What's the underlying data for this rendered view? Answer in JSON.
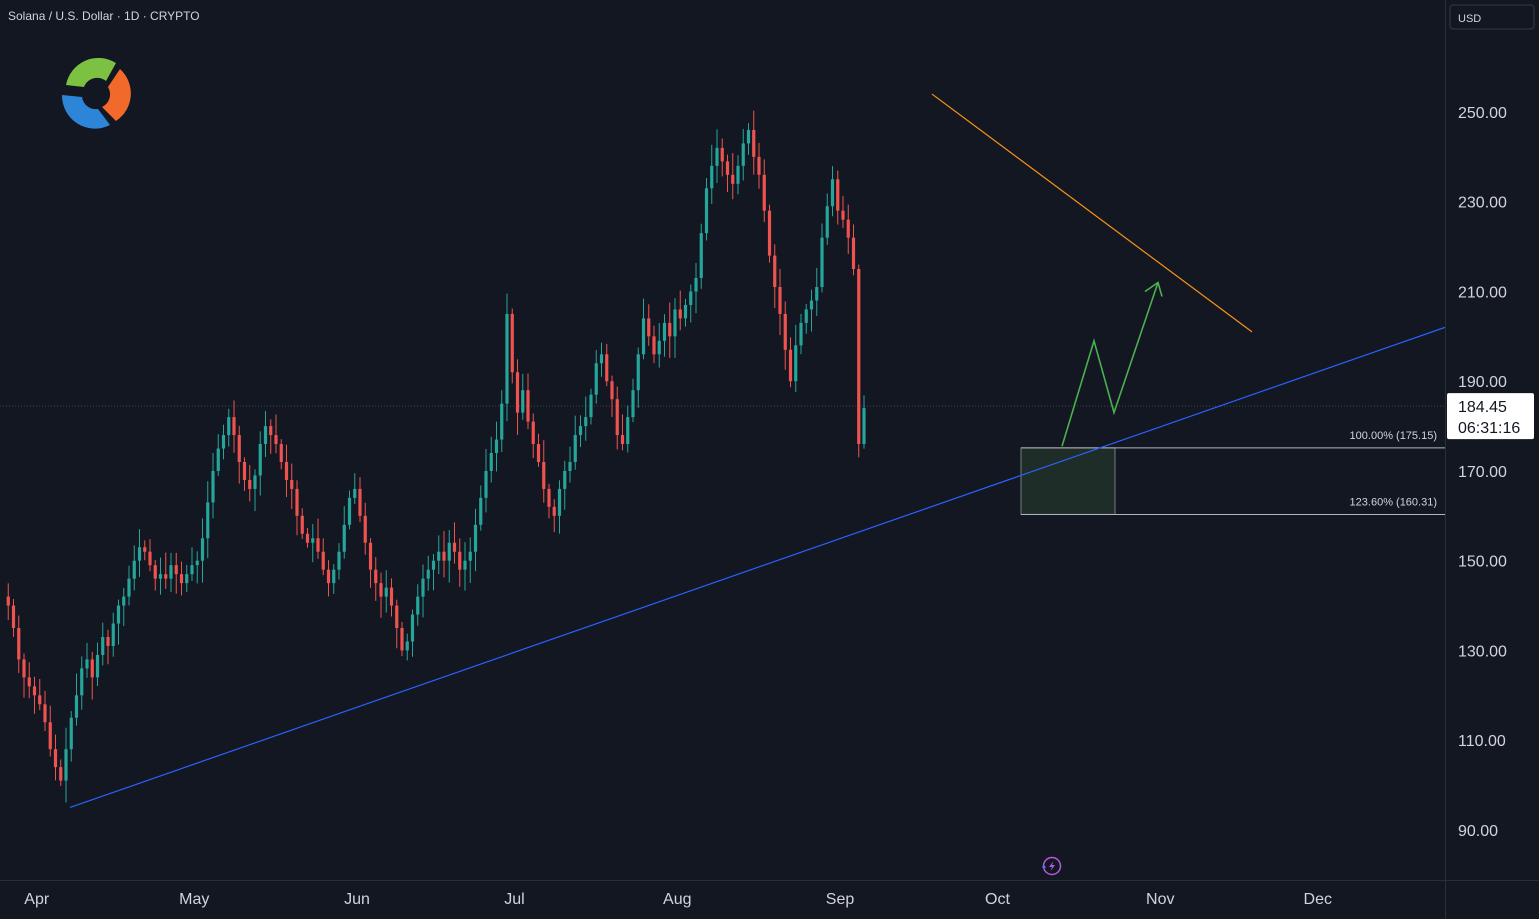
{
  "header": {
    "title": "Solana / U.S. Dollar · 1D · CRYPTO"
  },
  "currency_button": "USD",
  "current_price": {
    "price": "184.45",
    "countdown": "06:31:16"
  },
  "logo_icon": "tri-swirl-logo-icon",
  "bottom_icon": "lightning-icon",
  "colors": {
    "background": "#131722",
    "up": "#26a69a",
    "down": "#ef5350",
    "trendline_support": "#2962ff",
    "trendline_resistance": "#f7931a",
    "projection": "#4caf50",
    "fib_box": "#1f2d29"
  },
  "fibonacci": {
    "level1_label": "100.00% (175.15)",
    "level2_label": "123.60% (160.31)"
  },
  "chart_data": {
    "type": "candlestick",
    "title": "Solana / U.S. Dollar · 1D · CRYPTO",
    "y_ticks": [
      "250.00",
      "230.00",
      "210.00",
      "190.00",
      "170.00",
      "150.00",
      "130.00",
      "110.00",
      "90.00"
    ],
    "x_ticks": [
      "Apr",
      "May",
      "Jun",
      "Jul",
      "Aug",
      "Sep",
      "Oct",
      "Nov",
      "Dec"
    ],
    "ylim": [
      80,
      268
    ],
    "grid": false,
    "closes": [
      140,
      135,
      128,
      124,
      122,
      120,
      118,
      114,
      108,
      104,
      101,
      108,
      115,
      120,
      126,
      128,
      124,
      129,
      133,
      131,
      136,
      140,
      142,
      146,
      150,
      153,
      152,
      149,
      146,
      147,
      146,
      149,
      147,
      145,
      147,
      149,
      150,
      155,
      163,
      170,
      175,
      178,
      182,
      178,
      172,
      168,
      166,
      169,
      176,
      180,
      178,
      176,
      172,
      168,
      166,
      160,
      156,
      154,
      155,
      152,
      148,
      145,
      148,
      152,
      158,
      164,
      166,
      160,
      154,
      148,
      145,
      142,
      144,
      140,
      135,
      130,
      132,
      138,
      142,
      146,
      148,
      150,
      152,
      150,
      154,
      152,
      148,
      150,
      152,
      158,
      164,
      170,
      174,
      177,
      185,
      205,
      192,
      183,
      188,
      181,
      176,
      172,
      166,
      162,
      160,
      166,
      170,
      172,
      178,
      180,
      182,
      187,
      194,
      196,
      190,
      186,
      178,
      176,
      182,
      188,
      196,
      204,
      200,
      196,
      199,
      203,
      200,
      206,
      204,
      207,
      210,
      213,
      223,
      233,
      238,
      242,
      239,
      236,
      234,
      238,
      243,
      246,
      240,
      236,
      228,
      218,
      211,
      205,
      197,
      190,
      198,
      203,
      206,
      208,
      211,
      222,
      229,
      235,
      228,
      226,
      222,
      215,
      176,
      184
    ],
    "annotations": {
      "support_trendline": [
        {
          "date": "Apr 9",
          "price": 95
        },
        {
          "date": "Dec 23",
          "price": 202
        }
      ],
      "resistance_trendline": [
        {
          "date": "Sep 18",
          "price": 254
        },
        {
          "date": "Nov 17",
          "price": 201
        }
      ],
      "projection_path": [
        175.5,
        199,
        183,
        212
      ],
      "fib_levels": [
        175.15,
        160.31
      ]
    }
  }
}
